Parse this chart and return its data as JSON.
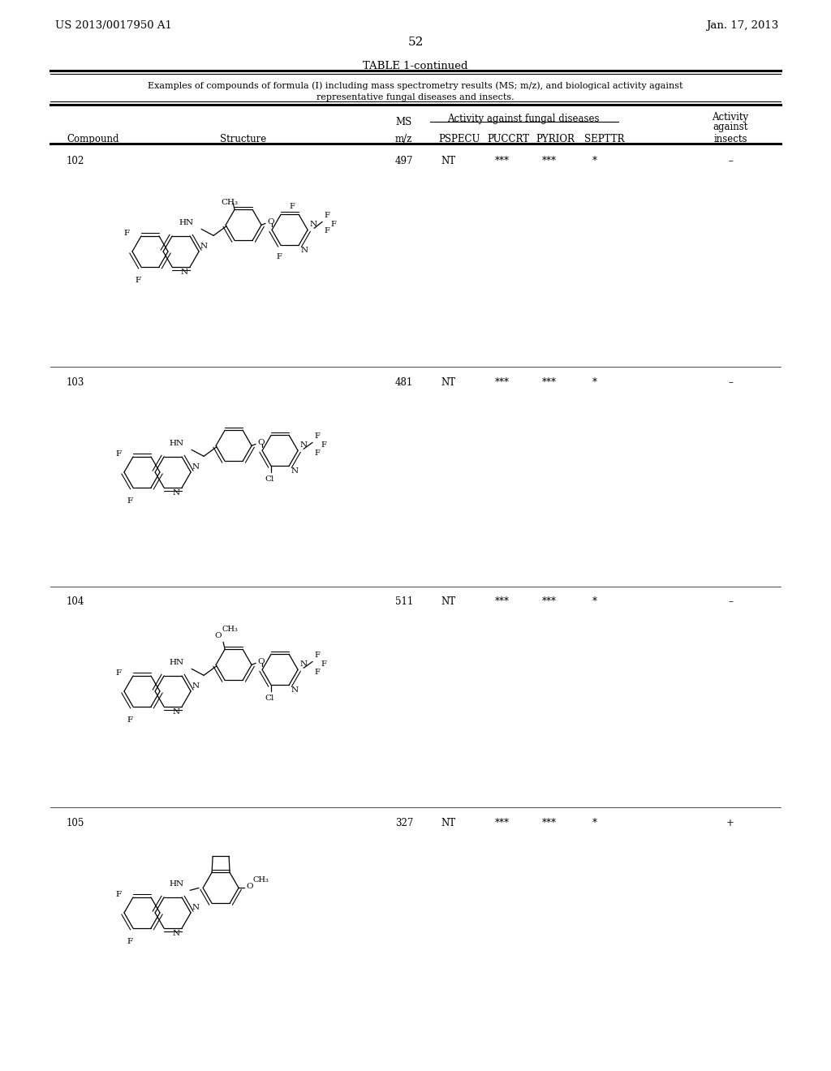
{
  "page_number": "52",
  "left_header": "US 2013/0017950 A1",
  "right_header": "Jan. 17, 2013",
  "table_title": "TABLE 1-continued",
  "table_subtitle_line1": "Examples of compounds of formula (I) including mass spectrometry results (MS; m/z), and biological activity against",
  "table_subtitle_line2": "representative fungal diseases and insects.",
  "bg_color": "#ffffff"
}
